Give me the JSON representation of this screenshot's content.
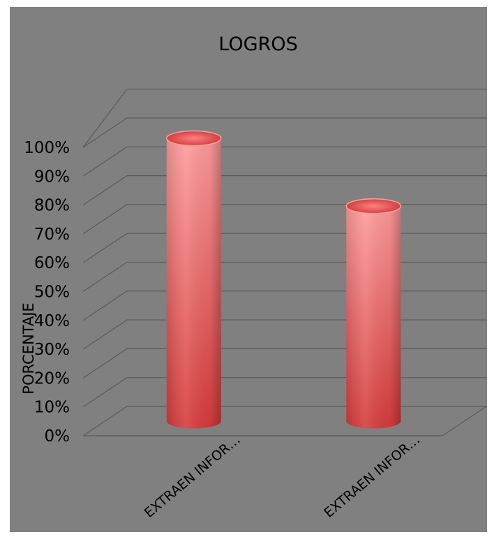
{
  "chart_data": {
    "type": "bar",
    "style": "3d-cylinder",
    "title": "LOGROS",
    "ylabel": "PORCENTAJE",
    "xlabel": "",
    "categories": [
      "EXTRAEN INFOR…",
      "EXTRAEN INFOR…"
    ],
    "series": [
      {
        "values": [
          100,
          76
        ],
        "color": "#e8504f"
      }
    ],
    "ylim": [
      0,
      100
    ],
    "yticks": [
      "0%",
      "10%",
      "20%",
      "30%",
      "40%",
      "50%",
      "60%",
      "70%",
      "80%",
      "90%",
      "100%"
    ],
    "grid": true,
    "legend": "none",
    "colors": {
      "background": "#808080",
      "gridline": "#5a5a5a",
      "bar_light": "#ff9a9a",
      "bar_dark": "#d33a3a"
    }
  }
}
